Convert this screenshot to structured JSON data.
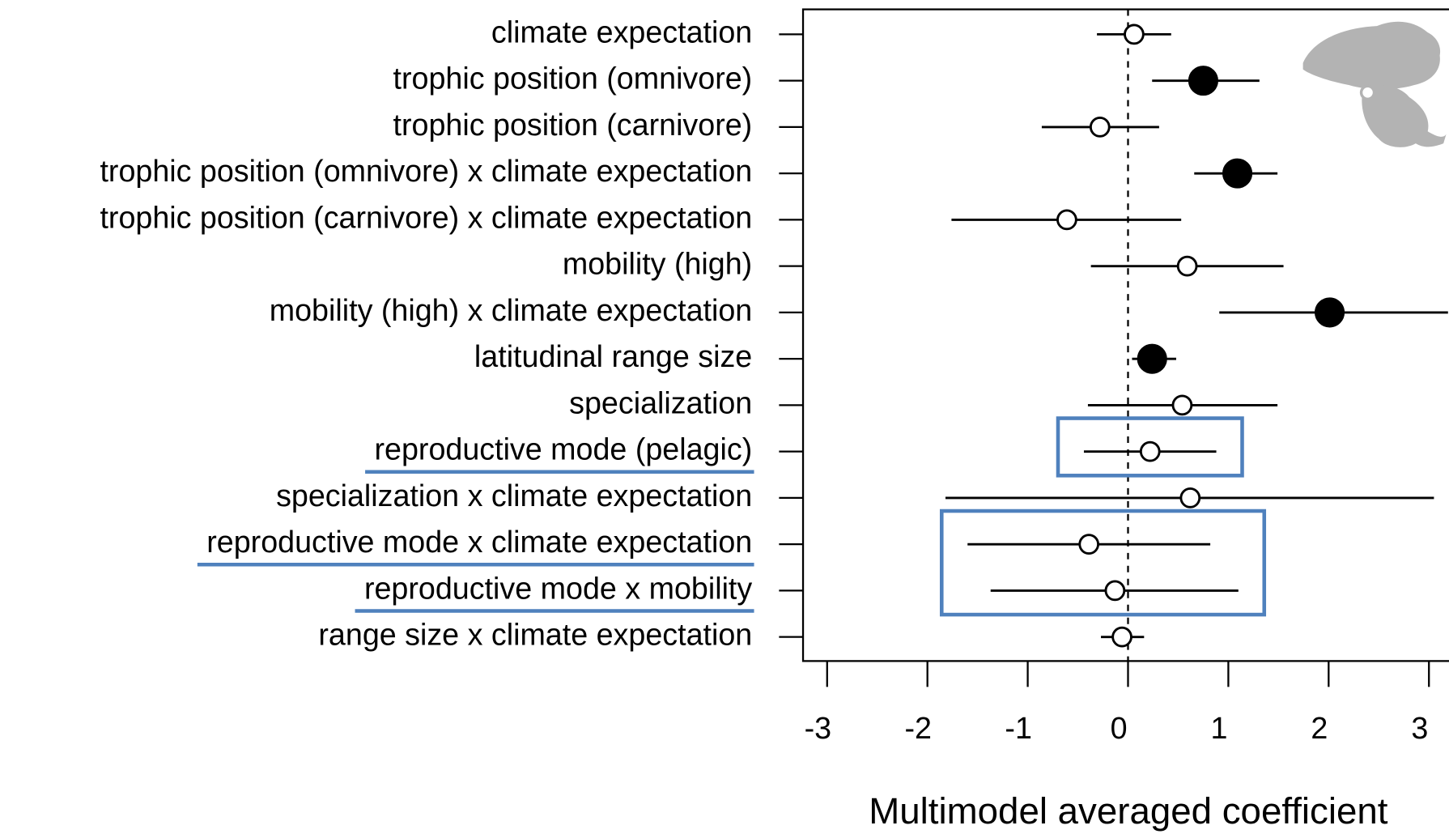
{
  "chart_data": {
    "type": "forest",
    "categories": [
      "climate expectation",
      "trophic position (omnivore)",
      "trophic position (carnivore)",
      "trophic position (omnivore) x climate expectation",
      "trophic position (carnivore) x climate expectation",
      "mobility (high)",
      "mobility (high) x climate expectation",
      "latitudinal range size",
      "specialization",
      "reproductive mode (pelagic)",
      "specialization x climate expectation",
      "reproductive mode x climate expectation",
      "reproductive mode x mobility",
      "range size x climate expectation"
    ],
    "values": [
      0.06,
      0.75,
      -0.28,
      1.09,
      -0.61,
      0.59,
      2.01,
      0.24,
      0.54,
      0.22,
      0.62,
      -0.39,
      -0.13,
      -0.06
    ],
    "lower": [
      -0.31,
      0.24,
      -0.86,
      0.66,
      -1.76,
      -0.37,
      0.91,
      0.04,
      -0.4,
      -0.44,
      -1.82,
      -1.6,
      -1.37,
      -0.27
    ],
    "upper": [
      0.43,
      1.31,
      0.31,
      1.49,
      0.53,
      1.55,
      3.19,
      0.48,
      1.49,
      0.88,
      3.05,
      0.82,
      1.1,
      0.16
    ],
    "filled": [
      false,
      true,
      false,
      true,
      false,
      false,
      true,
      true,
      false,
      false,
      false,
      false,
      false,
      false
    ],
    "highlighted": [
      false,
      false,
      false,
      false,
      false,
      false,
      false,
      false,
      false,
      true,
      false,
      true,
      true,
      false
    ],
    "highlight_color": "#4f81bd",
    "color": "#000000",
    "reference_line": 0,
    "xlim": [
      -3.24,
      3.2
    ],
    "xticks": [
      -3,
      -2,
      -1,
      0,
      1,
      2,
      3
    ],
    "xlabel": "Multimodel averaged coefficient"
  }
}
